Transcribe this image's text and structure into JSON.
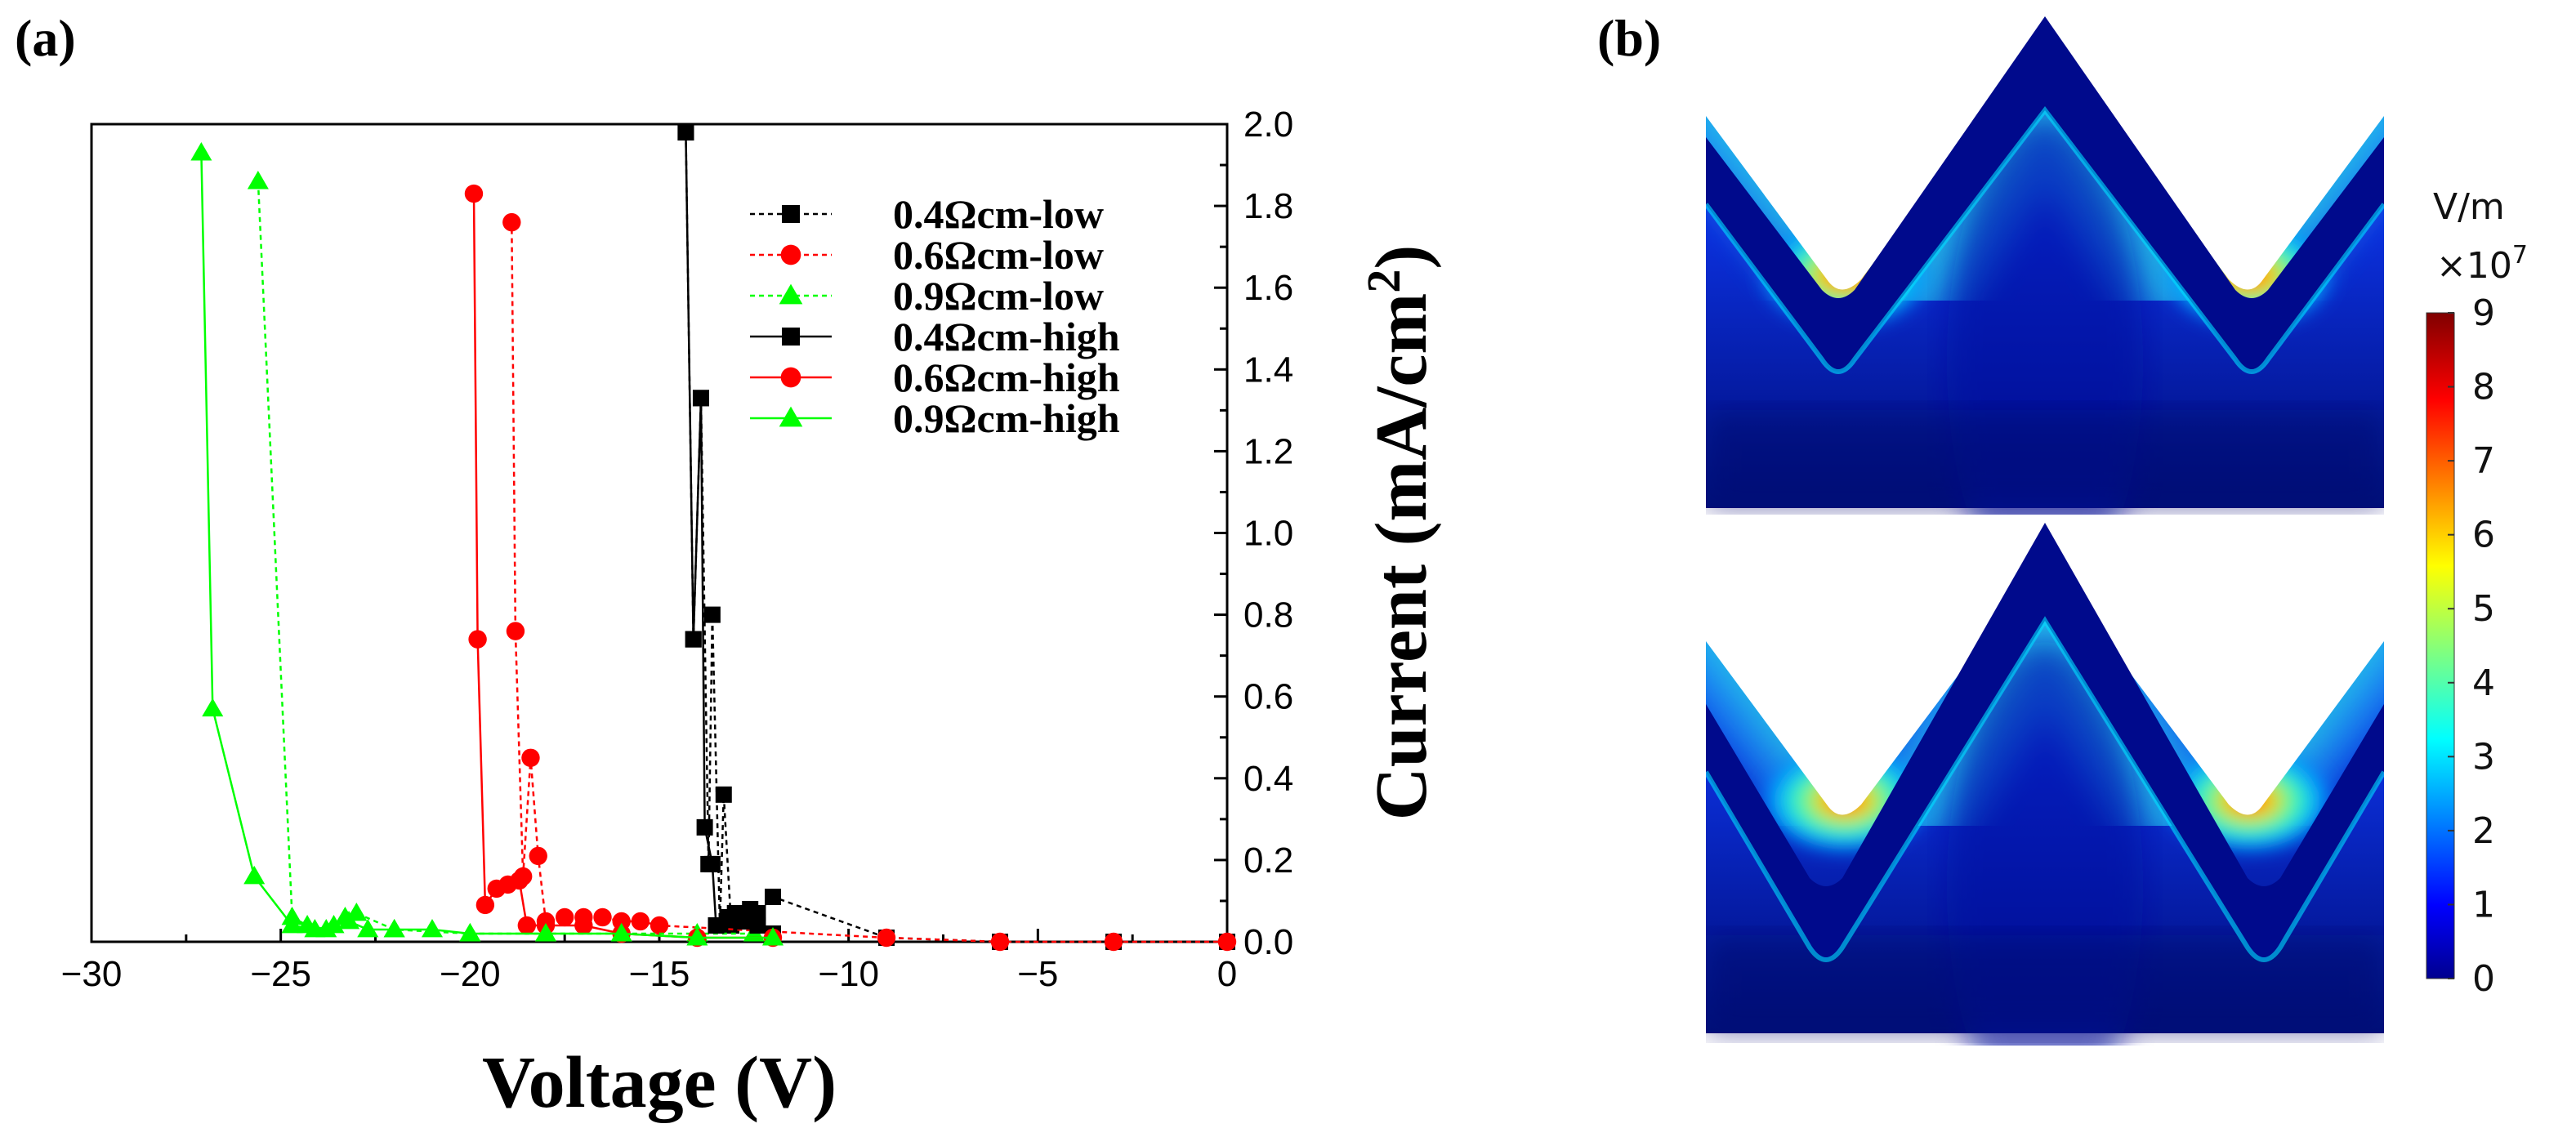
{
  "panel_a_label": "(a)",
  "panel_b_label": "(b)",
  "chart_data": {
    "type": "line",
    "xlabel": "Voltage (V)",
    "ylabel": "Current (mA/cm",
    "ylabel_sup": "2",
    "ylabel_close": ")",
    "xlim": [
      -30,
      0
    ],
    "ylim": [
      0,
      2.0
    ],
    "x_ticks": [
      -30,
      -25,
      -20,
      -15,
      -10,
      -5,
      0
    ],
    "x_tick_labels": [
      "−30",
      "−25",
      "−20",
      "−15",
      "−10",
      "−5",
      "0"
    ],
    "y_ticks": [
      0,
      0.2,
      0.4,
      0.6,
      0.8,
      1.0,
      1.2,
      1.4,
      1.6,
      1.8,
      2.0
    ],
    "y_tick_labels": [
      "0.0",
      "0.2",
      "0.4",
      "0.6",
      "0.8",
      "1.0",
      "1.2",
      "1.4",
      "1.6",
      "1.8",
      "2.0"
    ],
    "y_axis_side": "right",
    "legend_position": "top-right",
    "series": [
      {
        "name": "0.4Ωcm-low",
        "color": "#000000",
        "marker": "square",
        "dash": "dotted",
        "x": [
          0,
          -3,
          -6,
          -9,
          -12,
          -12.4,
          -12.6,
          -12.8,
          -13.0,
          -13.1,
          -13.3,
          -13.4,
          -13.6,
          -13.7,
          -13.9,
          -14.1,
          -14.3
        ],
        "y": [
          0,
          0,
          0,
          0.01,
          0.11,
          0.07,
          0.08,
          0.07,
          0.07,
          0.04,
          0.36,
          0.04,
          0.8,
          0.19,
          1.33,
          0.74,
          1.98
        ]
      },
      {
        "name": "0.6Ωcm-low",
        "color": "#ff0000",
        "marker": "circle",
        "dash": "dotted",
        "x": [
          0,
          -3,
          -6,
          -9,
          -15,
          -15.5,
          -16.0,
          -16.5,
          -17.0,
          -17.5,
          -18.0,
          -18.2,
          -18.4,
          -18.6,
          -18.8,
          -18.9
        ],
        "y": [
          0,
          0,
          0,
          0.01,
          0.04,
          0.05,
          0.05,
          0.06,
          0.06,
          0.06,
          0.05,
          0.21,
          0.45,
          0.16,
          0.76,
          1.76
        ]
      },
      {
        "name": "0.9Ωcm-low",
        "color": "#00ff00",
        "marker": "triangle",
        "dash": "dotted",
        "x": [
          -12.5,
          -14,
          -16,
          -18,
          -20,
          -22,
          -23.0,
          -23.3,
          -23.8,
          -24.3,
          -24.7,
          -25.6
        ],
        "y": [
          0.02,
          0.02,
          0.02,
          0.02,
          0.02,
          0.03,
          0.07,
          0.06,
          0.03,
          0.04,
          0.06,
          1.86
        ]
      },
      {
        "name": "0.4Ωcm-high",
        "color": "#000000",
        "marker": "square",
        "dash": "solid",
        "x": [
          -12.0,
          -12.4,
          -12.8,
          -13.2,
          -13.5,
          -13.6,
          -13.8,
          -13.9,
          -14.1,
          -14.3
        ],
        "y": [
          0.02,
          0.04,
          0.05,
          0.06,
          0.04,
          0.19,
          0.28,
          1.33,
          0.74,
          1.98
        ]
      },
      {
        "name": "0.6Ωcm-high",
        "color": "#ff0000",
        "marker": "circle",
        "dash": "solid",
        "x": [
          -12.0,
          -14,
          -16,
          -17,
          -18.0,
          -18.5,
          -18.7,
          -19.0,
          -19.3,
          -19.6,
          -19.8,
          -19.9
        ],
        "y": [
          0.01,
          0.01,
          0.02,
          0.04,
          0.04,
          0.04,
          0.15,
          0.14,
          0.13,
          0.09,
          0.74,
          1.83
        ]
      },
      {
        "name": "0.9Ωcm-high",
        "color": "#00ff00",
        "marker": "triangle",
        "dash": "solid",
        "x": [
          -12.0,
          -14,
          -16,
          -18,
          -20,
          -21,
          -22,
          -22.7,
          -23.2,
          -23.6,
          -24.1,
          -24.7,
          -25.7,
          -26.8,
          -27.1
        ],
        "y": [
          0.01,
          0.01,
          0.02,
          0.02,
          0.02,
          0.03,
          0.03,
          0.03,
          0.05,
          0.04,
          0.03,
          0.04,
          0.16,
          0.57,
          1.93
        ]
      }
    ]
  },
  "colorbar": {
    "unit": "V/m",
    "multiplier": "×10",
    "multiplier_exp": "7",
    "range": [
      0,
      9
    ],
    "tick_labels": [
      "9",
      "8",
      "7",
      "6",
      "5",
      "4",
      "3",
      "2",
      "1",
      "0"
    ]
  }
}
